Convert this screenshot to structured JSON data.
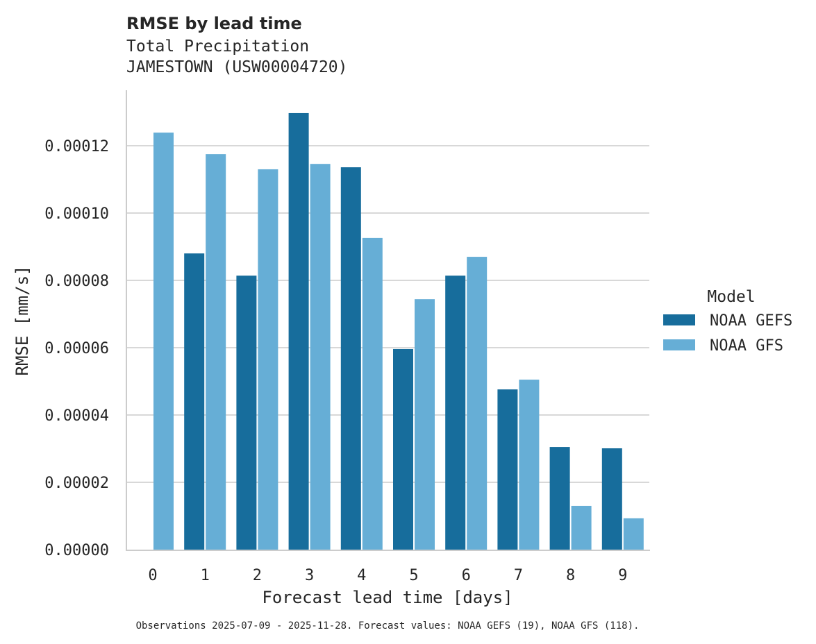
{
  "chart_data": {
    "type": "bar",
    "title": "RMSE by lead time",
    "subtitle_lines": [
      "Total Precipitation",
      "JAMESTOWN (USW00004720)"
    ],
    "xlabel": "Forecast lead time [days]",
    "ylabel": "RMSE [mm/s]",
    "categories": [
      "0",
      "1",
      "2",
      "3",
      "4",
      "5",
      "6",
      "7",
      "8",
      "9"
    ],
    "ylim": [
      0,
      0.000137
    ],
    "yticks": [
      0,
      2e-05,
      4e-05,
      6e-05,
      8e-05,
      0.0001,
      0.00012
    ],
    "ytick_labels": [
      "0.00000",
      "0.00002",
      "0.00004",
      "0.00006",
      "0.00008",
      "0.00010",
      "0.00012"
    ],
    "grid": "horizontal",
    "legend": {
      "title": "Model",
      "placement": "right"
    },
    "series": [
      {
        "name": "NOAA GEFS",
        "color": "#176d9c",
        "values": [
          null,
          8.8e-05,
          8.14e-05,
          0.0001297,
          0.0001136,
          5.96e-05,
          8.14e-05,
          4.76e-05,
          3.05e-05,
          3.01e-05
        ]
      },
      {
        "name": "NOAA GFS",
        "color": "#66aed6",
        "values": [
          0.0001239,
          0.0001175,
          0.000113,
          0.0001146,
          9.26e-05,
          7.44e-05,
          8.7e-05,
          5.05e-05,
          1.3e-05,
          9.3e-06
        ]
      }
    ],
    "footnote": "Observations 2025-07-09 - 2025-11-28. Forecast values: NOAA GEFS (19), NOAA GFS (118)."
  }
}
